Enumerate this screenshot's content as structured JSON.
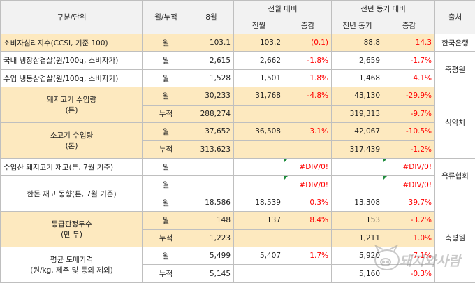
{
  "header": {
    "category": "구분/단위",
    "period_type": "월/누적",
    "current_month": "8월",
    "mom_group": "전월 대비",
    "yoy_group": "전년 동기 대비",
    "source": "출처",
    "prev_month": "전월",
    "change": "증감",
    "prev_year_same": "전년 동기",
    "change_yoy": "증감"
  },
  "rows": {
    "ccsi": {
      "label": "소비자심리지수(CCSI, 기준 100)",
      "type": "월",
      "current": "103.1",
      "prev": "103.2",
      "mom": "(0.1)",
      "last_year": "88.8",
      "yoy": "14.3",
      "source": "한국은행"
    },
    "dom_frozen": {
      "label": "국내 냉장삼겹살(원/100g, 소비자가)",
      "type": "월",
      "current": "2,615",
      "prev": "2,662",
      "mom": "-1.8%",
      "last_year": "2,659",
      "yoy": "-1.7%"
    },
    "imp_frozen": {
      "label": "수입 냉동삼겹살(원/100g, 소비자가)",
      "type": "월",
      "current": "1,528",
      "prev": "1,501",
      "mom": "1.8%",
      "last_year": "1,468",
      "yoy": "4.1%"
    },
    "krc_source": "축평원",
    "pork_import": {
      "label_line1": "돼지고기 수입량",
      "label_line2": "(톤)",
      "m_type": "월",
      "m_current": "30,233",
      "m_prev": "31,768",
      "m_mom": "-4.8%",
      "m_last_year": "43,130",
      "m_yoy": "-29.9%",
      "c_type": "누적",
      "c_current": "288,274",
      "c_last_year": "319,313",
      "c_yoy": "-9.7%"
    },
    "beef_import": {
      "label_line1": "소고기 수입량",
      "label_line2": "(톤)",
      "m_type": "월",
      "m_current": "37,652",
      "m_prev": "36,508",
      "m_mom": "3.1%",
      "m_last_year": "42,067",
      "m_yoy": "-10.5%",
      "c_type": "누적",
      "c_current": "313,623",
      "c_last_year": "317,439",
      "c_yoy": "-1.2%"
    },
    "mfds_source": "식약처",
    "imported_pork_stock": {
      "label": "수입산 돼지고기 재고(톤, 7월 기준)",
      "type": "월",
      "mom": "#DIV/0!",
      "yoy": "#DIV/0!"
    },
    "meat_assoc_source": "육류협회",
    "hanwoo_stock": {
      "label": "한돈 재고 동향(톤, 7월 기준)",
      "r1_type": "월",
      "r1_mom": "#DIV/0!",
      "r1_yoy": "#DIV/0!",
      "r2_type": "월",
      "r2_current": "18,586",
      "r2_prev": "18,539",
      "r2_mom": "0.3%",
      "r2_last_year": "13,308",
      "r2_yoy": "39.7%"
    },
    "grading": {
      "label_line1": "등급판정두수",
      "label_line2": "(만 두)",
      "m_type": "월",
      "m_current": "148",
      "m_prev": "137",
      "m_mom": "8.4%",
      "m_last_year": "153",
      "m_yoy": "-3.2%",
      "c_type": "누적",
      "c_current": "1,223",
      "c_last_year": "1,211",
      "c_yoy": "1.0%"
    },
    "wholesale": {
      "label_line1": "평균 도매가격",
      "label_line2": "(원/kg, 제주 및 등외 제외)",
      "m_type": "월",
      "m_current": "5,499",
      "m_prev": "5,407",
      "m_mom": "1.7%",
      "m_last_year": "5,920",
      "m_yoy": "-7.1%",
      "c_type": "누적",
      "c_current": "5,145",
      "c_last_year": "5,160",
      "c_yoy": "-0.3%"
    },
    "krc_source2": "축평원"
  },
  "colors": {
    "highlight": "#fde9bf",
    "negative": "#ff0000",
    "grid": "#bfbfbf",
    "header_bg": "#f2f2f2"
  },
  "watermark": {
    "text": "돼지와사람",
    "icon": "pig-logo-icon"
  }
}
